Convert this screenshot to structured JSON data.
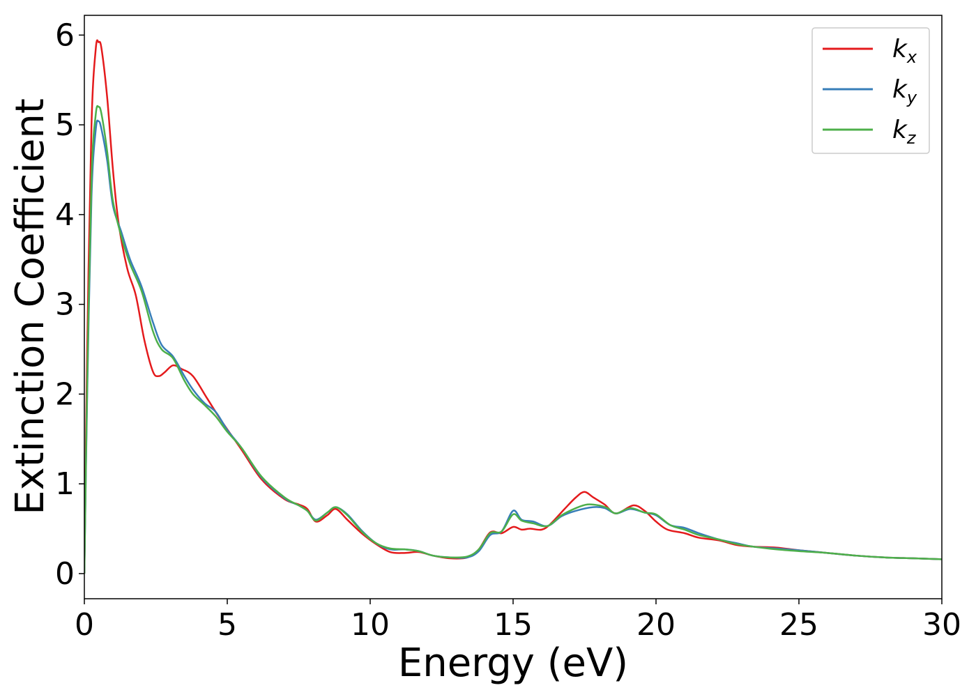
{
  "chart_data": {
    "type": "line",
    "xlabel": "Energy (eV)",
    "ylabel": "Extinction Coefficient",
    "xlim": [
      0,
      30
    ],
    "ylim": [
      -0.28,
      6.22
    ],
    "xticks": [
      0,
      5,
      10,
      15,
      20,
      25,
      30
    ],
    "yticks": [
      0,
      1,
      2,
      3,
      4,
      5,
      6
    ],
    "grid": false,
    "legend_position": "top-right",
    "series": [
      {
        "name": "k",
        "subscript": "x",
        "color": "#e41a1c",
        "points": [
          [
            0,
            0
          ],
          [
            0.1,
            2.5
          ],
          [
            0.25,
            5.0
          ],
          [
            0.4,
            5.85
          ],
          [
            0.5,
            5.92
          ],
          [
            0.6,
            5.85
          ],
          [
            0.8,
            5.3
          ],
          [
            1.0,
            4.5
          ],
          [
            1.2,
            3.9
          ],
          [
            1.5,
            3.4
          ],
          [
            1.8,
            3.1
          ],
          [
            2.1,
            2.6
          ],
          [
            2.4,
            2.25
          ],
          [
            2.6,
            2.2
          ],
          [
            2.8,
            2.24
          ],
          [
            3.1,
            2.32
          ],
          [
            3.4,
            2.28
          ],
          [
            3.8,
            2.2
          ],
          [
            4.3,
            1.95
          ],
          [
            4.8,
            1.7
          ],
          [
            5.5,
            1.38
          ],
          [
            6.2,
            1.05
          ],
          [
            7.0,
            0.83
          ],
          [
            7.5,
            0.77
          ],
          [
            7.8,
            0.72
          ],
          [
            8.1,
            0.58
          ],
          [
            8.5,
            0.65
          ],
          [
            8.8,
            0.72
          ],
          [
            9.2,
            0.6
          ],
          [
            9.7,
            0.45
          ],
          [
            10.2,
            0.33
          ],
          [
            10.7,
            0.24
          ],
          [
            11.2,
            0.23
          ],
          [
            11.7,
            0.24
          ],
          [
            12.2,
            0.2
          ],
          [
            12.8,
            0.17
          ],
          [
            13.4,
            0.18
          ],
          [
            13.8,
            0.27
          ],
          [
            14.2,
            0.46
          ],
          [
            14.6,
            0.45
          ],
          [
            15.0,
            0.52
          ],
          [
            15.3,
            0.49
          ],
          [
            15.6,
            0.5
          ],
          [
            16.0,
            0.49
          ],
          [
            16.3,
            0.55
          ],
          [
            16.8,
            0.72
          ],
          [
            17.2,
            0.85
          ],
          [
            17.5,
            0.91
          ],
          [
            17.8,
            0.85
          ],
          [
            18.2,
            0.77
          ],
          [
            18.6,
            0.67
          ],
          [
            19.2,
            0.76
          ],
          [
            19.6,
            0.7
          ],
          [
            20.0,
            0.58
          ],
          [
            20.4,
            0.49
          ],
          [
            21.0,
            0.45
          ],
          [
            21.5,
            0.4
          ],
          [
            22.2,
            0.37
          ],
          [
            22.8,
            0.32
          ],
          [
            23.4,
            0.3
          ],
          [
            24.2,
            0.29
          ],
          [
            25.0,
            0.26
          ],
          [
            26.0,
            0.23
          ],
          [
            27.0,
            0.2
          ],
          [
            28.0,
            0.18
          ],
          [
            29.0,
            0.17
          ],
          [
            30.0,
            0.16
          ]
        ]
      },
      {
        "name": "k",
        "subscript": "y",
        "color": "#377eb8",
        "points": [
          [
            0,
            0
          ],
          [
            0.1,
            2.0
          ],
          [
            0.25,
            4.2
          ],
          [
            0.4,
            4.95
          ],
          [
            0.5,
            5.04
          ],
          [
            0.6,
            4.95
          ],
          [
            0.8,
            4.6
          ],
          [
            1.0,
            4.1
          ],
          [
            1.3,
            3.8
          ],
          [
            1.6,
            3.5
          ],
          [
            2.0,
            3.2
          ],
          [
            2.4,
            2.8
          ],
          [
            2.7,
            2.55
          ],
          [
            3.1,
            2.42
          ],
          [
            3.5,
            2.2
          ],
          [
            3.8,
            2.05
          ],
          [
            4.2,
            1.9
          ],
          [
            4.6,
            1.8
          ],
          [
            5.0,
            1.6
          ],
          [
            5.5,
            1.4
          ],
          [
            6.2,
            1.07
          ],
          [
            7.0,
            0.84
          ],
          [
            7.5,
            0.76
          ],
          [
            7.8,
            0.7
          ],
          [
            8.1,
            0.6
          ],
          [
            8.5,
            0.68
          ],
          [
            8.8,
            0.74
          ],
          [
            9.2,
            0.66
          ],
          [
            9.7,
            0.48
          ],
          [
            10.2,
            0.34
          ],
          [
            10.7,
            0.27
          ],
          [
            11.2,
            0.27
          ],
          [
            11.7,
            0.25
          ],
          [
            12.2,
            0.2
          ],
          [
            12.8,
            0.18
          ],
          [
            13.4,
            0.18
          ],
          [
            13.8,
            0.25
          ],
          [
            14.2,
            0.43
          ],
          [
            14.6,
            0.47
          ],
          [
            15.0,
            0.7
          ],
          [
            15.3,
            0.6
          ],
          [
            15.7,
            0.58
          ],
          [
            16.2,
            0.53
          ],
          [
            16.7,
            0.64
          ],
          [
            17.2,
            0.7
          ],
          [
            17.8,
            0.74
          ],
          [
            18.2,
            0.73
          ],
          [
            18.6,
            0.67
          ],
          [
            19.1,
            0.72
          ],
          [
            19.6,
            0.68
          ],
          [
            20.0,
            0.65
          ],
          [
            20.5,
            0.54
          ],
          [
            21.0,
            0.51
          ],
          [
            21.5,
            0.45
          ],
          [
            22.2,
            0.38
          ],
          [
            22.8,
            0.34
          ],
          [
            23.4,
            0.3
          ],
          [
            24.2,
            0.28
          ],
          [
            25.0,
            0.26
          ],
          [
            26.0,
            0.23
          ],
          [
            27.0,
            0.2
          ],
          [
            28.0,
            0.18
          ],
          [
            29.0,
            0.17
          ],
          [
            30.0,
            0.16
          ]
        ]
      },
      {
        "name": "k",
        "subscript": "z",
        "color": "#4daf4a",
        "points": [
          [
            0,
            0
          ],
          [
            0.1,
            2.1
          ],
          [
            0.25,
            4.4
          ],
          [
            0.4,
            5.12
          ],
          [
            0.5,
            5.2
          ],
          [
            0.6,
            5.12
          ],
          [
            0.8,
            4.7
          ],
          [
            1.0,
            4.15
          ],
          [
            1.3,
            3.75
          ],
          [
            1.6,
            3.45
          ],
          [
            2.0,
            3.15
          ],
          [
            2.4,
            2.7
          ],
          [
            2.7,
            2.5
          ],
          [
            3.1,
            2.4
          ],
          [
            3.5,
            2.15
          ],
          [
            3.8,
            2.0
          ],
          [
            4.2,
            1.88
          ],
          [
            4.6,
            1.75
          ],
          [
            5.0,
            1.58
          ],
          [
            5.5,
            1.4
          ],
          [
            6.2,
            1.08
          ],
          [
            7.0,
            0.85
          ],
          [
            7.5,
            0.76
          ],
          [
            7.8,
            0.7
          ],
          [
            8.1,
            0.59
          ],
          [
            8.5,
            0.68
          ],
          [
            8.8,
            0.74
          ],
          [
            9.2,
            0.65
          ],
          [
            9.7,
            0.47
          ],
          [
            10.2,
            0.34
          ],
          [
            10.7,
            0.28
          ],
          [
            11.2,
            0.27
          ],
          [
            11.7,
            0.25
          ],
          [
            12.2,
            0.2
          ],
          [
            12.8,
            0.18
          ],
          [
            13.4,
            0.19
          ],
          [
            13.8,
            0.27
          ],
          [
            14.2,
            0.45
          ],
          [
            14.6,
            0.47
          ],
          [
            15.0,
            0.66
          ],
          [
            15.3,
            0.59
          ],
          [
            15.7,
            0.56
          ],
          [
            16.2,
            0.53
          ],
          [
            16.7,
            0.65
          ],
          [
            17.2,
            0.73
          ],
          [
            17.6,
            0.77
          ],
          [
            18.0,
            0.76
          ],
          [
            18.3,
            0.73
          ],
          [
            18.6,
            0.67
          ],
          [
            19.1,
            0.73
          ],
          [
            19.6,
            0.68
          ],
          [
            20.0,
            0.66
          ],
          [
            20.5,
            0.54
          ],
          [
            21.0,
            0.49
          ],
          [
            21.5,
            0.43
          ],
          [
            22.2,
            0.38
          ],
          [
            22.8,
            0.33
          ],
          [
            23.4,
            0.3
          ],
          [
            24.2,
            0.27
          ],
          [
            25.0,
            0.25
          ],
          [
            26.0,
            0.23
          ],
          [
            27.0,
            0.2
          ],
          [
            28.0,
            0.18
          ],
          [
            29.0,
            0.17
          ],
          [
            30.0,
            0.16
          ]
        ]
      }
    ]
  }
}
